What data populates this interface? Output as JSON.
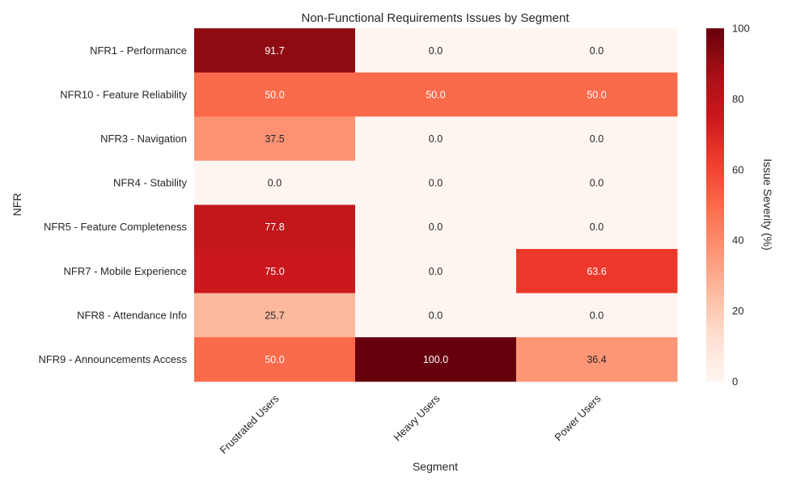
{
  "chart_data": {
    "type": "heatmap",
    "title": "Non-Functional Requirements Issues by Segment",
    "xlabel": "Segment",
    "ylabel": "NFR",
    "colorbar_label": "Issue Severity (%)",
    "colorbar_range": [
      0,
      100
    ],
    "colorbar_ticks": [
      "0",
      "20",
      "40",
      "60",
      "80",
      "100"
    ],
    "colormap": "Reds",
    "columns": [
      "Frustrated Users",
      "Heavy Users",
      "Power Users"
    ],
    "rows": [
      "NFR1 - Performance",
      "NFR10 - Feature Reliability",
      "NFR3 - Navigation",
      "NFR4 - Stability",
      "NFR5 - Feature Completeness",
      "NFR7 - Mobile Experience",
      "NFR8 - Attendance Info",
      "NFR9 - Announcements Access"
    ],
    "values": [
      [
        91.7,
        0.0,
        0.0
      ],
      [
        50.0,
        50.0,
        50.0
      ],
      [
        37.5,
        0.0,
        0.0
      ],
      [
        0.0,
        0.0,
        0.0
      ],
      [
        77.8,
        0.0,
        0.0
      ],
      [
        75.0,
        0.0,
        63.6
      ],
      [
        25.7,
        0.0,
        0.0
      ],
      [
        50.0,
        100.0,
        36.4
      ]
    ],
    "value_labels": [
      [
        "91.7",
        "0.0",
        "0.0"
      ],
      [
        "50.0",
        "50.0",
        "50.0"
      ],
      [
        "37.5",
        "0.0",
        "0.0"
      ],
      [
        "0.0",
        "0.0",
        "0.0"
      ],
      [
        "77.8",
        "0.0",
        "0.0"
      ],
      [
        "75.0",
        "0.0",
        "63.6"
      ],
      [
        "25.7",
        "0.0",
        "0.0"
      ],
      [
        "50.0",
        "100.0",
        "36.4"
      ]
    ]
  }
}
